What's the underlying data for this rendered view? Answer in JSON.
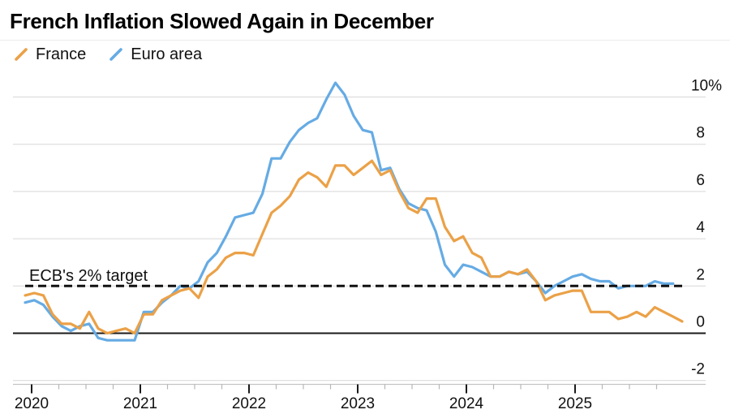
{
  "title": "French Inflation Slowed Again in December",
  "annotation": {
    "target_label": "ECB's 2% target"
  },
  "colors": {
    "france": "#EBA147",
    "euro_area": "#66ABE4",
    "target_dash": "#111111",
    "zero_line": "#1a1a1a",
    "gridline": "#d7d7d7",
    "axis_line": "#c4c4c4",
    "text": "#111111"
  },
  "chart_data": {
    "type": "line",
    "title": "French Inflation Slowed Again in December",
    "x_start": "2019-12",
    "x_step_months": 1,
    "x_tick_labels": [
      "2020",
      "2021",
      "2022",
      "2023",
      "2024",
      "2025"
    ],
    "y_ticks": [
      {
        "label": "10%",
        "value": 10
      },
      {
        "label": "8",
        "value": 8
      },
      {
        "label": "6",
        "value": 6
      },
      {
        "label": "4",
        "value": 4
      },
      {
        "label": "2",
        "value": 2
      },
      {
        "label": "0",
        "value": 0
      },
      {
        "label": "-2",
        "value": -2
      }
    ],
    "ylim": [
      -2.8,
      11
    ],
    "grid": true,
    "legend_position": "top-left",
    "target_line_value": 2,
    "target_line_label": "ECB's 2% target",
    "series": [
      {
        "name": "Euro area",
        "color": "#66ABE4",
        "last_month": "2025-11",
        "values": [
          1.3,
          1.4,
          1.2,
          0.7,
          0.3,
          0.1,
          0.3,
          0.4,
          -0.2,
          -0.3,
          -0.3,
          -0.3,
          -0.3,
          0.9,
          0.9,
          1.3,
          1.6,
          2.0,
          1.9,
          2.2,
          3.0,
          3.4,
          4.1,
          4.9,
          5.0,
          5.1,
          5.9,
          7.4,
          7.4,
          8.1,
          8.6,
          8.9,
          9.1,
          9.9,
          10.6,
          10.1,
          9.2,
          8.6,
          8.5,
          6.9,
          7.0,
          6.1,
          5.5,
          5.3,
          5.2,
          4.3,
          2.9,
          2.4,
          2.9,
          2.8,
          2.6,
          2.4,
          2.4,
          2.6,
          2.5,
          2.6,
          2.2,
          1.7,
          2.0,
          2.2,
          2.4,
          2.5,
          2.3,
          2.2,
          2.2,
          1.9,
          2.0,
          2.0,
          2.0,
          2.2,
          2.1,
          2.1
        ]
      },
      {
        "name": "France",
        "color": "#EBA147",
        "last_month": "2025-12",
        "values": [
          1.6,
          1.7,
          1.6,
          0.8,
          0.4,
          0.4,
          0.2,
          0.9,
          0.2,
          0.0,
          0.1,
          0.2,
          0.0,
          0.8,
          0.8,
          1.4,
          1.6,
          1.8,
          1.9,
          1.5,
          2.4,
          2.7,
          3.2,
          3.4,
          3.4,
          3.3,
          4.2,
          5.1,
          5.4,
          5.8,
          6.5,
          6.8,
          6.6,
          6.2,
          7.1,
          7.1,
          6.7,
          7.0,
          7.3,
          6.7,
          6.9,
          6.0,
          5.3,
          5.1,
          5.7,
          5.7,
          4.5,
          3.9,
          4.1,
          3.4,
          3.2,
          2.4,
          2.4,
          2.6,
          2.5,
          2.7,
          2.2,
          1.4,
          1.6,
          1.7,
          1.8,
          1.8,
          0.9,
          0.9,
          0.9,
          0.6,
          0.7,
          0.9,
          0.7,
          1.1,
          0.9,
          0.7,
          0.5
        ]
      }
    ]
  }
}
